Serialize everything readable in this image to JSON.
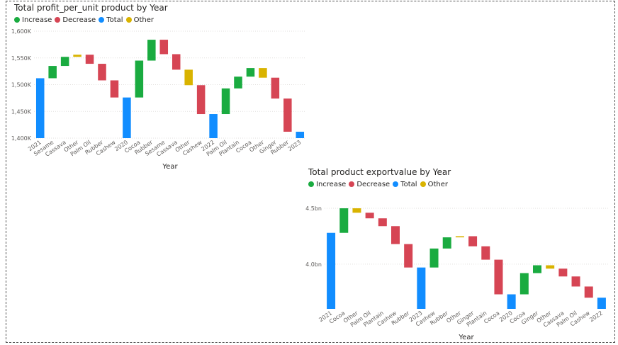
{
  "colors": {
    "increase": "#1AAB40",
    "decrease": "#D64554",
    "total": "#118DFF",
    "other": "#D9B300"
  },
  "legend": [
    {
      "key": "increase",
      "label": "Increase"
    },
    {
      "key": "decrease",
      "label": "Decrease"
    },
    {
      "key": "total",
      "label": "Total"
    },
    {
      "key": "other",
      "label": "Other"
    }
  ],
  "chart_data": [
    {
      "type": "waterfall",
      "title": "Total profit_per_unit product by Year",
      "xlabel": "Year",
      "ylabel": "",
      "ylim": [
        1400,
        1600
      ],
      "yticks": [
        1400,
        1450,
        1500,
        1550,
        1600
      ],
      "ytick_labels": [
        "1,400K",
        "1,450K",
        "1,500K",
        "1,550K",
        "1,600K"
      ],
      "grid": true,
      "legend_position": "top-left",
      "bars": [
        {
          "label": "2021",
          "start": 1400,
          "end": 1512,
          "kind": "total"
        },
        {
          "label": "Sesame",
          "start": 1512,
          "end": 1535,
          "kind": "increase"
        },
        {
          "label": "Cassava",
          "start": 1535,
          "end": 1552,
          "kind": "increase"
        },
        {
          "label": "Other",
          "start": 1552,
          "end": 1556,
          "kind": "other"
        },
        {
          "label": "Palm Oil",
          "start": 1556,
          "end": 1539,
          "kind": "decrease"
        },
        {
          "label": "Rubber",
          "start": 1539,
          "end": 1508,
          "kind": "decrease"
        },
        {
          "label": "Cashew",
          "start": 1508,
          "end": 1476,
          "kind": "decrease"
        },
        {
          "label": "2020",
          "start": 1400,
          "end": 1476,
          "kind": "total"
        },
        {
          "label": "Cocoa",
          "start": 1476,
          "end": 1545,
          "kind": "increase"
        },
        {
          "label": "Rubber",
          "start": 1545,
          "end": 1584,
          "kind": "increase"
        },
        {
          "label": "Sesame",
          "start": 1584,
          "end": 1557,
          "kind": "decrease"
        },
        {
          "label": "Cassava",
          "start": 1557,
          "end": 1528,
          "kind": "decrease"
        },
        {
          "label": "Other",
          "start": 1528,
          "end": 1499,
          "kind": "other"
        },
        {
          "label": "Cashew",
          "start": 1499,
          "end": 1445,
          "kind": "decrease"
        },
        {
          "label": "2022",
          "start": 1400,
          "end": 1445,
          "kind": "total"
        },
        {
          "label": "Palm Oil",
          "start": 1445,
          "end": 1493,
          "kind": "increase"
        },
        {
          "label": "Plantain",
          "start": 1493,
          "end": 1515,
          "kind": "increase"
        },
        {
          "label": "Cocoa",
          "start": 1515,
          "end": 1531,
          "kind": "increase"
        },
        {
          "label": "Other",
          "start": 1531,
          "end": 1513,
          "kind": "other"
        },
        {
          "label": "Ginger",
          "start": 1513,
          "end": 1474,
          "kind": "decrease"
        },
        {
          "label": "Rubber",
          "start": 1474,
          "end": 1412,
          "kind": "decrease"
        },
        {
          "label": "2023",
          "start": 1400,
          "end": 1412,
          "kind": "total"
        }
      ]
    },
    {
      "type": "waterfall",
      "title": "Total product exportvalue by Year",
      "xlabel": "Year",
      "ylabel": "",
      "ylim": [
        3.6,
        4.5
      ],
      "yticks": [
        4.0,
        4.5
      ],
      "ytick_labels": [
        "4.0bn",
        "4.5bn"
      ],
      "grid": true,
      "legend_position": "top-left",
      "bars": [
        {
          "label": "2021",
          "start": 3.6,
          "end": 4.28,
          "kind": "total"
        },
        {
          "label": "Cocoa",
          "start": 4.28,
          "end": 4.5,
          "kind": "increase"
        },
        {
          "label": "Other",
          "start": 4.5,
          "end": 4.46,
          "kind": "other"
        },
        {
          "label": "Palm Oil",
          "start": 4.46,
          "end": 4.41,
          "kind": "decrease"
        },
        {
          "label": "Plantain",
          "start": 4.41,
          "end": 4.34,
          "kind": "decrease"
        },
        {
          "label": "Cashew",
          "start": 4.34,
          "end": 4.18,
          "kind": "decrease"
        },
        {
          "label": "Rubber",
          "start": 4.18,
          "end": 3.97,
          "kind": "decrease"
        },
        {
          "label": "2023",
          "start": 3.6,
          "end": 3.97,
          "kind": "total"
        },
        {
          "label": "Cashew",
          "start": 3.97,
          "end": 4.14,
          "kind": "increase"
        },
        {
          "label": "Rubber",
          "start": 4.14,
          "end": 4.24,
          "kind": "increase"
        },
        {
          "label": "Other",
          "start": 4.24,
          "end": 4.25,
          "kind": "other"
        },
        {
          "label": "Ginger",
          "start": 4.25,
          "end": 4.16,
          "kind": "decrease"
        },
        {
          "label": "Plantain",
          "start": 4.16,
          "end": 4.04,
          "kind": "decrease"
        },
        {
          "label": "Cocoa",
          "start": 4.04,
          "end": 3.73,
          "kind": "decrease"
        },
        {
          "label": "2020",
          "start": 3.6,
          "end": 3.73,
          "kind": "total"
        },
        {
          "label": "Cocoa",
          "start": 3.73,
          "end": 3.92,
          "kind": "increase"
        },
        {
          "label": "Ginger",
          "start": 3.92,
          "end": 3.99,
          "kind": "increase"
        },
        {
          "label": "Other",
          "start": 3.99,
          "end": 3.96,
          "kind": "other"
        },
        {
          "label": "Cassava",
          "start": 3.96,
          "end": 3.89,
          "kind": "decrease"
        },
        {
          "label": "Palm Oil",
          "start": 3.89,
          "end": 3.8,
          "kind": "decrease"
        },
        {
          "label": "Cashew",
          "start": 3.8,
          "end": 3.7,
          "kind": "decrease"
        },
        {
          "label": "2022",
          "start": 3.6,
          "end": 3.7,
          "kind": "total"
        }
      ]
    }
  ]
}
